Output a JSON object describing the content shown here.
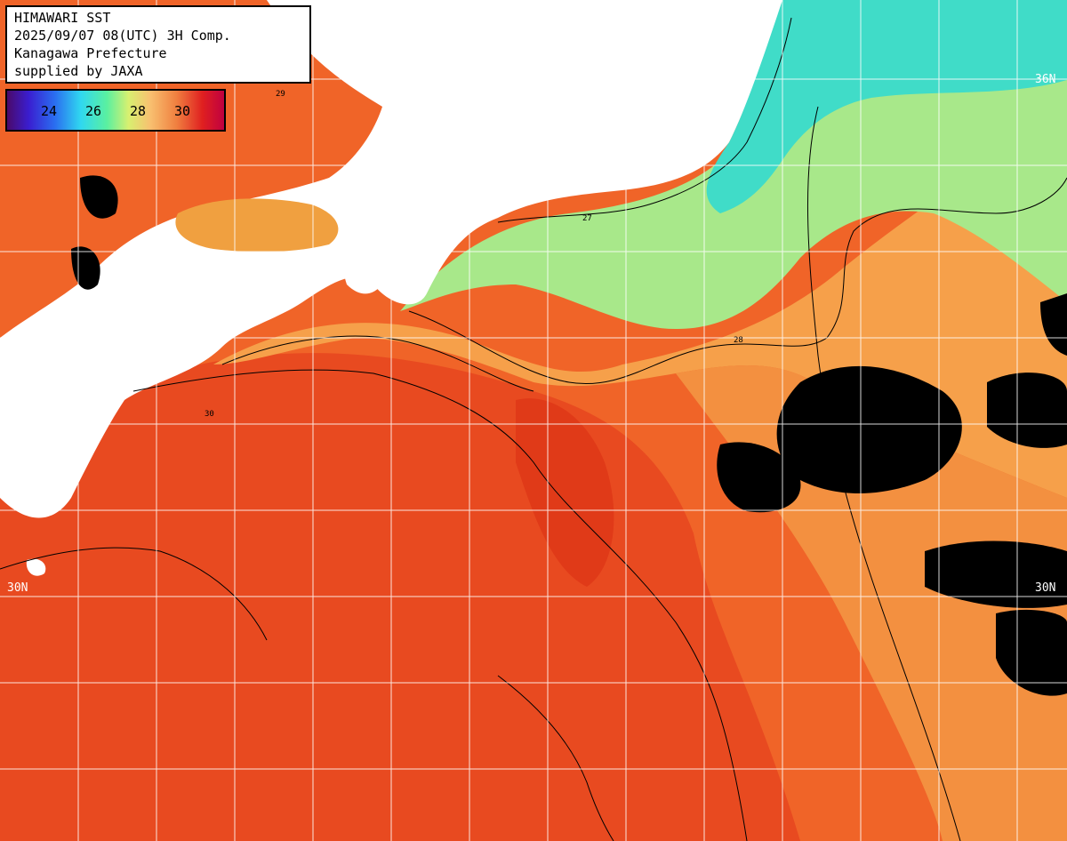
{
  "title": {
    "line1": "HIMAWARI SST",
    "line2": "2025/09/07 08(UTC) 3H Comp.",
    "line3": "Kanagawa Prefecture",
    "line4": "supplied by JAXA"
  },
  "colorbar": {
    "ticks": [
      "24",
      "26",
      "28",
      "30"
    ],
    "colors": [
      "#4a0a6a",
      "#3a1ed0",
      "#2a6ef0",
      "#30d8f0",
      "#5af0a0",
      "#d8f070",
      "#f8c070",
      "#f08040",
      "#e02020",
      "#c00040"
    ]
  },
  "latitude_labels": {
    "lat36_right": "36N",
    "lat30_left": "30N",
    "lat30_right": "30N"
  },
  "contour_labels": [
    "27",
    "28",
    "29",
    "30"
  ],
  "colors": {
    "warm_sea": "#f06020",
    "hot_sea": "#e03818",
    "mild_sea": "#f8b050",
    "cool_sea": "#70e0a0",
    "cold_sea": "#40e0c0",
    "land": "#ffffff",
    "cloud": "#000000"
  }
}
